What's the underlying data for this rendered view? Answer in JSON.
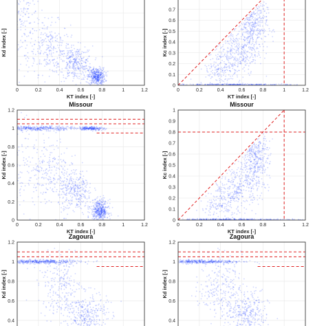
{
  "chart_data": [
    {
      "type": "scatter",
      "title": "",
      "xlabel": "KT index [-]",
      "ylabel": "Kd index [-]",
      "xlim": [
        0,
        1.2
      ],
      "ylim": [
        0,
        1.2
      ],
      "xticks": [
        "0",
        "0.2",
        "0.4",
        "0.6",
        "0.8",
        "1",
        "1.2"
      ],
      "yticks": [],
      "grid": true,
      "hlines": [],
      "vlines": [],
      "diag": false,
      "density": [
        [
          0.02,
          0.72,
          0.06,
          0.45,
          0.2
        ],
        [
          0.3,
          0.52,
          0.1,
          0.18,
          0.45
        ],
        [
          0.55,
          0.3,
          0.08,
          0.12,
          0.6
        ],
        [
          0.75,
          0.12,
          0.04,
          0.06,
          0.8
        ],
        [
          0.1,
          0.95,
          0.08,
          0.2,
          0.15
        ]
      ]
    },
    {
      "type": "scatter",
      "title": "",
      "xlabel": "KT index [-]",
      "ylabel": "Kc index [-]",
      "xlim": [
        0,
        1.2
      ],
      "ylim": [
        0,
        0.8
      ],
      "xticks": [
        "0",
        "0.2",
        "0.4",
        "0.6",
        "0.8",
        "1",
        "1.2"
      ],
      "yticks": [
        "0",
        "0.1",
        "0.2",
        "0.3",
        "0.4",
        "0.5",
        "0.6",
        "0.7"
      ],
      "grid": true,
      "hlines": [],
      "vlines": [
        1.0
      ],
      "diag": true,
      "density": [
        [
          0.7,
          0.55,
          0.07,
          0.14,
          0.85
        ],
        [
          0.55,
          0.3,
          0.1,
          0.1,
          0.5
        ],
        [
          0.4,
          0.15,
          0.1,
          0.07,
          0.3
        ],
        [
          0.5,
          0.005,
          0.3,
          0.004,
          0.6
        ]
      ]
    },
    {
      "type": "scatter",
      "title": "Missour",
      "xlabel": "KT index [-]",
      "ylabel": "Kd index [-]",
      "xlim": [
        0,
        1.2
      ],
      "ylim": [
        0,
        1.2
      ],
      "xticks": [
        "0",
        "0.2",
        "0.4",
        "0.6",
        "0.8",
        "1",
        "1.2"
      ],
      "yticks": [
        "0",
        "0.2",
        "0.4",
        "0.6",
        "0.8",
        "1",
        "1.2"
      ],
      "grid": true,
      "hlines": [
        1.1,
        1.05,
        0.95
      ],
      "vlines": [],
      "diag": false,
      "density": [
        [
          0.02,
          0.75,
          0.06,
          0.45,
          0.2
        ],
        [
          0.3,
          0.55,
          0.1,
          0.18,
          0.45
        ],
        [
          0.55,
          0.3,
          0.08,
          0.12,
          0.6
        ],
        [
          0.78,
          0.1,
          0.04,
          0.06,
          0.85
        ],
        [
          0.2,
          1.0,
          0.18,
          0.012,
          0.7
        ],
        [
          0.7,
          1.0,
          0.06,
          0.01,
          0.4
        ]
      ]
    },
    {
      "type": "scatter",
      "title": "Missour",
      "xlabel": "KT index [-]",
      "ylabel": "Kc index [-]",
      "xlim": [
        0,
        1.2
      ],
      "ylim": [
        0,
        1.0
      ],
      "xticks": [
        "0",
        "0.2",
        "0.4",
        "0.6",
        "0.8",
        "1",
        "1.2"
      ],
      "yticks": [
        "0",
        "0.1",
        "0.2",
        "0.3",
        "0.4",
        "0.5",
        "0.6",
        "0.7",
        "0.8",
        "0.9",
        "1"
      ],
      "grid": true,
      "hlines": [
        0.8
      ],
      "vlines": [
        1.0
      ],
      "diag": true,
      "density": [
        [
          0.72,
          0.55,
          0.07,
          0.14,
          0.85
        ],
        [
          0.55,
          0.3,
          0.1,
          0.1,
          0.5
        ],
        [
          0.4,
          0.12,
          0.1,
          0.07,
          0.3
        ],
        [
          0.5,
          0.005,
          0.3,
          0.004,
          0.6
        ]
      ]
    },
    {
      "type": "scatter",
      "title": "Zagoura",
      "xlabel": "KT index [-]",
      "ylabel": "Kd index [-]",
      "xlim": [
        0,
        1.2
      ],
      "ylim": [
        0.3,
        1.2
      ],
      "xticks": [],
      "yticks": [
        "0.4",
        "0.6",
        "0.8",
        "1",
        "1.2"
      ],
      "grid": true,
      "hlines": [
        1.1,
        1.05,
        0.95
      ],
      "vlines": [],
      "diag": false,
      "density": [
        [
          0.4,
          0.75,
          0.1,
          0.15,
          0.45
        ],
        [
          0.65,
          0.45,
          0.1,
          0.12,
          0.7
        ],
        [
          0.2,
          1.0,
          0.2,
          0.01,
          0.8
        ]
      ]
    },
    {
      "type": "scatter",
      "title": "Zagoura",
      "xlabel": "KT index [-]",
      "ylabel": "Kd index [-]",
      "xlim": [
        0,
        1.2
      ],
      "ylim": [
        0.3,
        1.2
      ],
      "xticks": [],
      "yticks": [
        "0.4",
        "0.6",
        "0.8",
        "1",
        "1.2"
      ],
      "grid": true,
      "hlines": [
        1.1,
        1.05,
        0.95
      ],
      "vlines": [],
      "diag": false,
      "density": [
        [
          0.4,
          0.75,
          0.1,
          0.15,
          0.45
        ],
        [
          0.65,
          0.45,
          0.1,
          0.12,
          0.7
        ],
        [
          0.2,
          1.0,
          0.2,
          0.01,
          0.8
        ]
      ]
    }
  ],
  "colors": {
    "points": "#1f3fff",
    "guide": "#e02020",
    "axis": "#222222",
    "grid": "#e6e6e6"
  }
}
